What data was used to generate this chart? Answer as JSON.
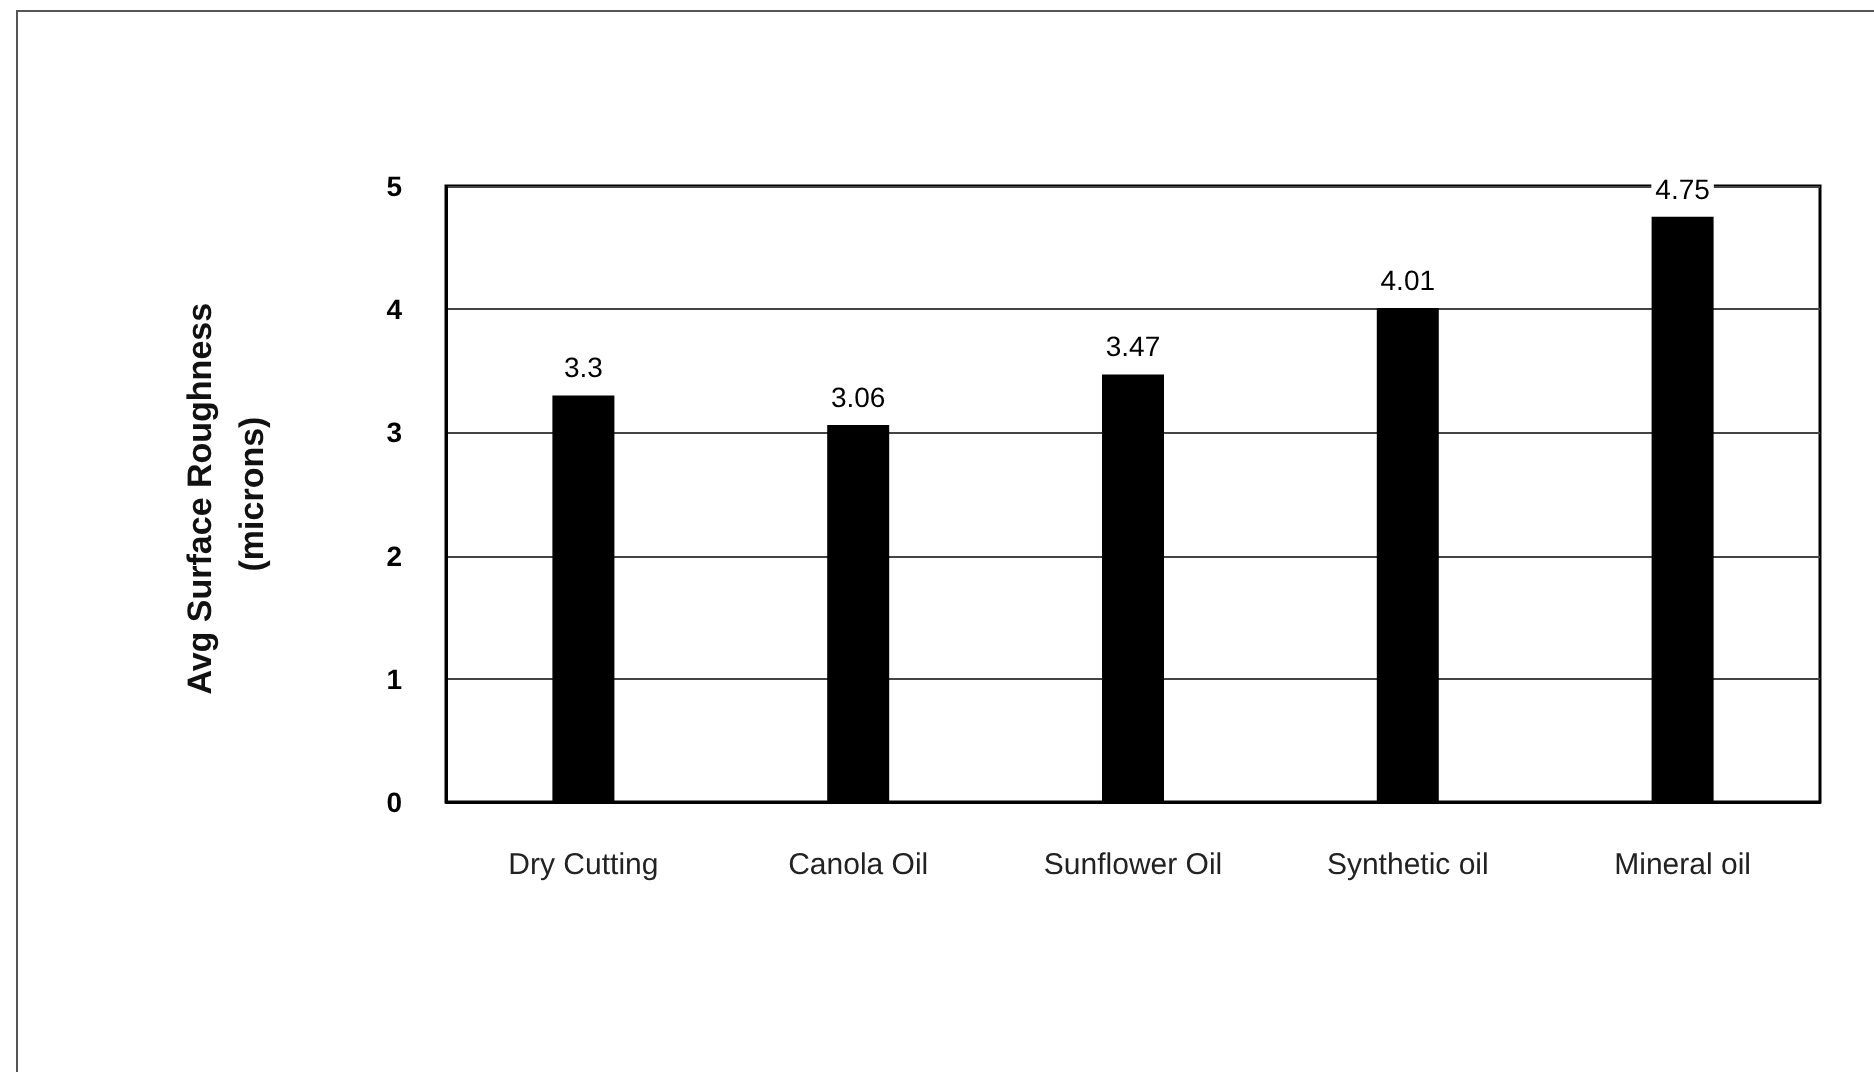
{
  "chart_data": {
    "type": "bar",
    "ylabel": "Avg Surface Roughness (microns)",
    "categories": [
      "Dry Cutting",
      "Canola Oil",
      "Sunflower Oil",
      "Synthetic oil",
      "Mineral oil"
    ],
    "values": [
      3.3,
      3.06,
      3.47,
      4.01,
      4.75
    ],
    "color": "#000000",
    "ylim": [
      0,
      5
    ],
    "yticks": [
      0,
      1,
      2,
      3,
      4,
      5
    ],
    "grid": "y",
    "data_labels": true
  }
}
